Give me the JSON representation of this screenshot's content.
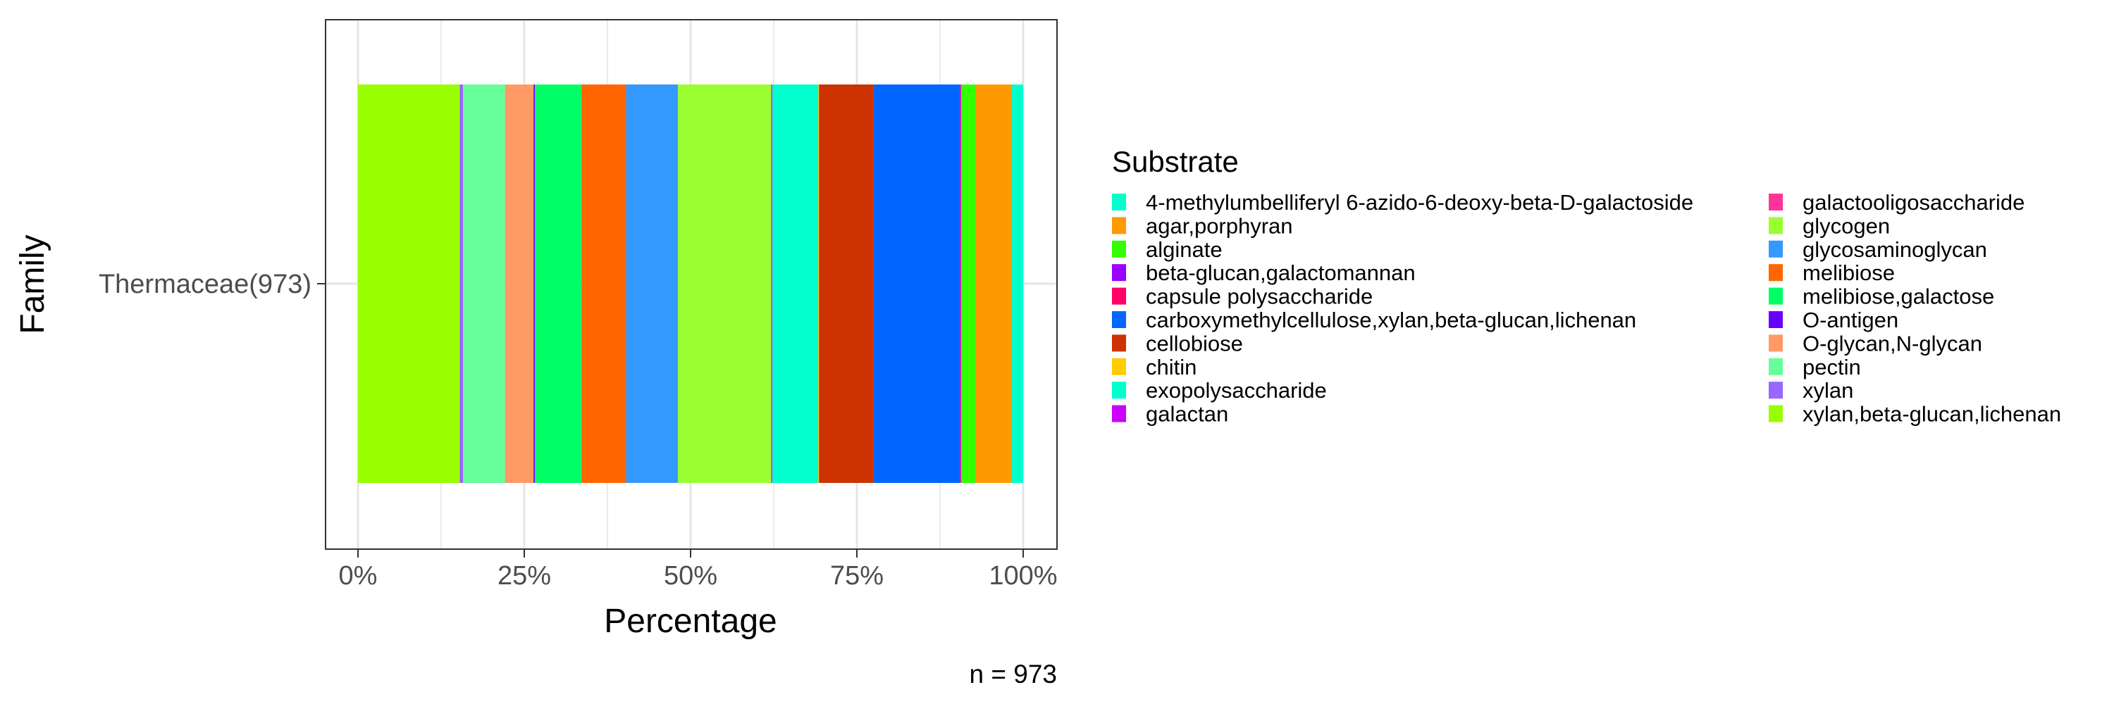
{
  "chart_data": {
    "type": "bar",
    "orientation": "horizontal",
    "stacked": true,
    "xlabel": "Percentage",
    "ylabel": "Family",
    "categories": [
      "Thermaceae(973)"
    ],
    "xlim": [
      0,
      100
    ],
    "x_ticks": [
      0,
      25,
      50,
      75,
      100
    ],
    "x_tick_labels": [
      "0%",
      "25%",
      "50%",
      "75%",
      "100%"
    ],
    "grid": true,
    "caption": "n = 973",
    "legend_title": "Substrate",
    "legend_position": "right",
    "legend_columns": [
      [
        "4-methylumbelliferyl 6-azido-6-deoxy-beta-D-galactoside",
        "agar,porphyran",
        "alginate",
        "beta-glucan,galactomannan",
        "capsule polysaccharide",
        "carboxymethylcellulose,xylan,beta-glucan,lichenan",
        "cellobiose",
        "chitin",
        "exopolysaccharide",
        "galactan"
      ],
      [
        "galactooligosaccharide",
        "glycogen",
        "glycosaminoglycan",
        "melibiose",
        "melibiose,galactose",
        "O-antigen",
        "O-glycan,N-glycan",
        "pectin",
        "xylan",
        "xylan,beta-glucan,lichenan"
      ]
    ],
    "series": [
      {
        "name": "xylan,beta-glucan,lichenan",
        "color": "#99FF00",
        "values": [
          15.3
        ]
      },
      {
        "name": "xylan",
        "color": "#9966FF",
        "values": [
          0.5
        ]
      },
      {
        "name": "pectin",
        "color": "#66FF99",
        "values": [
          6.3
        ]
      },
      {
        "name": "O-glycan,N-glycan",
        "color": "#FF9966",
        "values": [
          4.3
        ]
      },
      {
        "name": "O-antigen",
        "color": "#6600FF",
        "values": [
          0.2
        ]
      },
      {
        "name": "melibiose,galactose",
        "color": "#00FF66",
        "values": [
          7.0
        ]
      },
      {
        "name": "melibiose",
        "color": "#FF6600",
        "values": [
          6.7
        ]
      },
      {
        "name": "glycosaminoglycan",
        "color": "#3399FF",
        "values": [
          7.8
        ]
      },
      {
        "name": "glycogen",
        "color": "#99FF33",
        "values": [
          14.0
        ]
      },
      {
        "name": "galactooligosaccharide",
        "color": "#FF3399",
        "values": [
          0.1
        ]
      },
      {
        "name": "galactan",
        "color": "#CC00FF",
        "values": [
          0.1
        ]
      },
      {
        "name": "exopolysaccharide",
        "color": "#00FFCC",
        "values": [
          6.9
        ]
      },
      {
        "name": "chitin",
        "color": "#FFCC00",
        "values": [
          0.1
        ]
      },
      {
        "name": "cellobiose",
        "color": "#CC3300",
        "values": [
          8.2
        ]
      },
      {
        "name": "carboxymethylcellulose,xylan,beta-glucan,lichenan",
        "color": "#0066FF",
        "values": [
          13.0
        ]
      },
      {
        "name": "capsule polysaccharide",
        "color": "#FF0066",
        "values": [
          0.1
        ]
      },
      {
        "name": "beta-glucan,galactomannan",
        "color": "#9900FF",
        "values": [
          0.1
        ]
      },
      {
        "name": "alginate",
        "color": "#33FF00",
        "values": [
          2.1
        ]
      },
      {
        "name": "agar,porphyran",
        "color": "#FF9900",
        "values": [
          5.5
        ]
      },
      {
        "name": "4-methylumbelliferyl 6-azido-6-deoxy-beta-D-galactoside",
        "color": "#00FFCC",
        "values": [
          1.7
        ]
      }
    ]
  }
}
